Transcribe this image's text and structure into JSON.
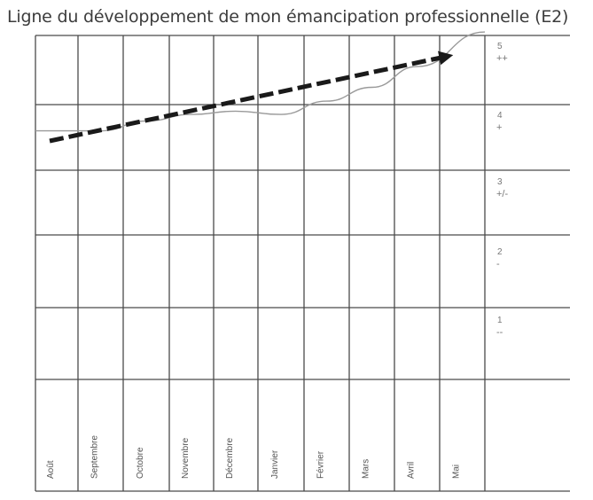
{
  "chart_data": {
    "type": "line",
    "title": "Ligne du développement de mon émancipation professionnelle (E2)",
    "x_labels": [
      "Août",
      "Septembre",
      "Octobre",
      "Novembre",
      "Décembre",
      "Janvier",
      "Février",
      "Mars",
      "Avril",
      "Mai"
    ],
    "levels": [
      {
        "value": 5,
        "label": "5",
        "symbol": "++"
      },
      {
        "value": 4,
        "label": "4",
        "symbol": "+"
      },
      {
        "value": 3,
        "label": "3",
        "symbol": "+/-"
      },
      {
        "value": 2,
        "label": "2",
        "symbol": "-"
      },
      {
        "value": 1,
        "label": "1",
        "symbol": "--"
      }
    ],
    "ylim": [
      1,
      5
    ],
    "grid": true,
    "series": [
      {
        "x": [
          "Août",
          "Septembre",
          "Octobre",
          "Novembre",
          "Décembre",
          "Janvier",
          "Février",
          "Mars",
          "Avril",
          "Mai"
        ],
        "values": [
          3.6,
          3.6,
          3.75,
          3.85,
          3.9,
          3.85,
          4.05,
          4.25,
          4.55,
          5.05
        ],
        "style": "thin-line",
        "color": "#9a9a9a"
      },
      {
        "x": [
          "Août",
          "Mai"
        ],
        "values": [
          3.5,
          4.7
        ],
        "style": "dashed-arrow",
        "color": "#1a1a1a"
      }
    ]
  }
}
